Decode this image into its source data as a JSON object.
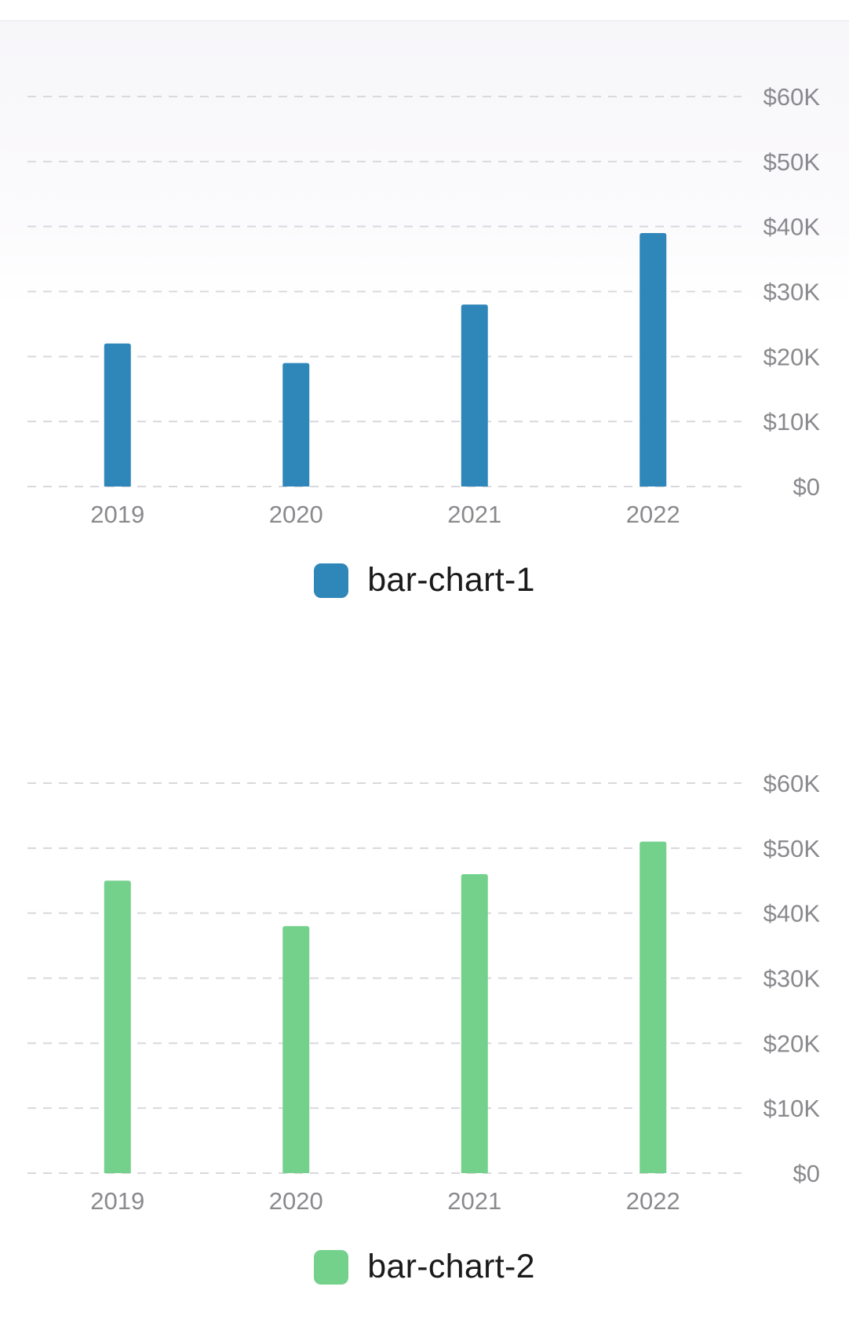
{
  "chart_data": [
    {
      "type": "bar",
      "categories": [
        "2019",
        "2020",
        "2021",
        "2022"
      ],
      "series": [
        {
          "name": "bar-chart-1",
          "values": [
            22000,
            19000,
            28000,
            39000
          ]
        }
      ],
      "ylim": [
        0,
        60000
      ],
      "yticks": [
        "$0",
        "$10K",
        "$20K",
        "$30K",
        "$40K",
        "$50K",
        "$60K"
      ],
      "y_axis_side": "right",
      "grid": true,
      "legend_position": "bottom-center",
      "color": "#2e86b9"
    },
    {
      "type": "bar",
      "categories": [
        "2019",
        "2020",
        "2021",
        "2022"
      ],
      "series": [
        {
          "name": "bar-chart-2",
          "values": [
            45000,
            38000,
            46000,
            51000
          ]
        }
      ],
      "ylim": [
        0,
        60000
      ],
      "yticks": [
        "$0",
        "$10K",
        "$20K",
        "$30K",
        "$40K",
        "$50K",
        "$60K"
      ],
      "y_axis_side": "right",
      "grid": true,
      "legend_position": "bottom-center",
      "color": "#73d18c"
    }
  ]
}
